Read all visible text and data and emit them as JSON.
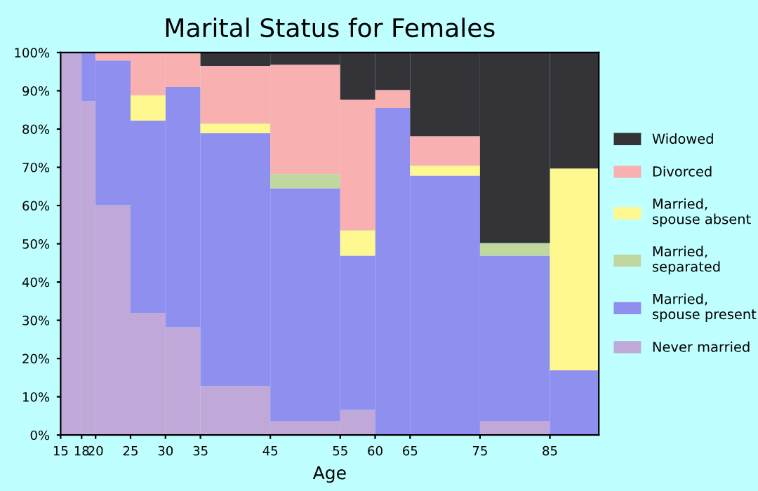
{
  "chart_data": {
    "type": "bar",
    "stacked": true,
    "title": "Marital Status for Females",
    "xlabel": "Age",
    "x": [
      16.5,
      19,
      22.5,
      27.5,
      32.5,
      40,
      50,
      57.5,
      62.5,
      70,
      80,
      88.5
    ],
    "series": [
      {
        "name": "Never married",
        "color": "#c0a8d8",
        "values": [
          100,
          87.3,
          60.1,
          31.9,
          28.2,
          12.8,
          3.7,
          6.6,
          null,
          null,
          3.7,
          null
        ]
      },
      {
        "name": "Married,\nspouse present",
        "color": "#8f8ff0",
        "values": [
          null,
          12.7,
          37.8,
          50.3,
          62.8,
          66.1,
          60.8,
          40.3,
          85.5,
          67.8,
          43.2,
          16.9
        ]
      },
      {
        "name": "Married,\nseparated",
        "color": "#c0d8a0",
        "values": [
          null,
          null,
          null,
          null,
          null,
          null,
          3.7,
          null,
          null,
          null,
          3.3,
          null
        ]
      },
      {
        "name": "Married,\nspouse absent",
        "color": "#fff890",
        "values": [
          null,
          null,
          null,
          6.6,
          null,
          2.5,
          null,
          6.6,
          null,
          2.6,
          null,
          52.8
        ]
      },
      {
        "name": "Divorced",
        "color": "#f8b0b0",
        "values": [
          null,
          null,
          2.1,
          11.2,
          9.0,
          15.1,
          28.6,
          34.2,
          4.7,
          7.7,
          null,
          null
        ]
      },
      {
        "name": "Widowed",
        "color": "#333338",
        "values": [
          null,
          null,
          null,
          null,
          null,
          3.5,
          3.2,
          12.3,
          9.8,
          21.9,
          49.8,
          30.3
        ]
      }
    ],
    "xlim": [
      15,
      92
    ],
    "xticks": [
      15,
      18,
      20,
      25,
      30,
      35,
      45,
      55,
      60,
      65,
      75,
      85
    ],
    "ylim": [
      0,
      100
    ],
    "yticks": [
      {
        "value": 0,
        "label": "0%"
      },
      {
        "value": 10,
        "label": "10%"
      },
      {
        "value": 20,
        "label": "20%"
      },
      {
        "value": 30,
        "label": "30%"
      },
      {
        "value": 40,
        "label": "40%"
      },
      {
        "value": 50,
        "label": "50%"
      },
      {
        "value": 60,
        "label": "60%"
      },
      {
        "value": 70,
        "label": "70%"
      },
      {
        "value": 80,
        "label": "80%"
      },
      {
        "value": 90,
        "label": "90%"
      },
      {
        "value": 100,
        "label": "100%"
      }
    ],
    "grid": false,
    "legend": "right"
  }
}
